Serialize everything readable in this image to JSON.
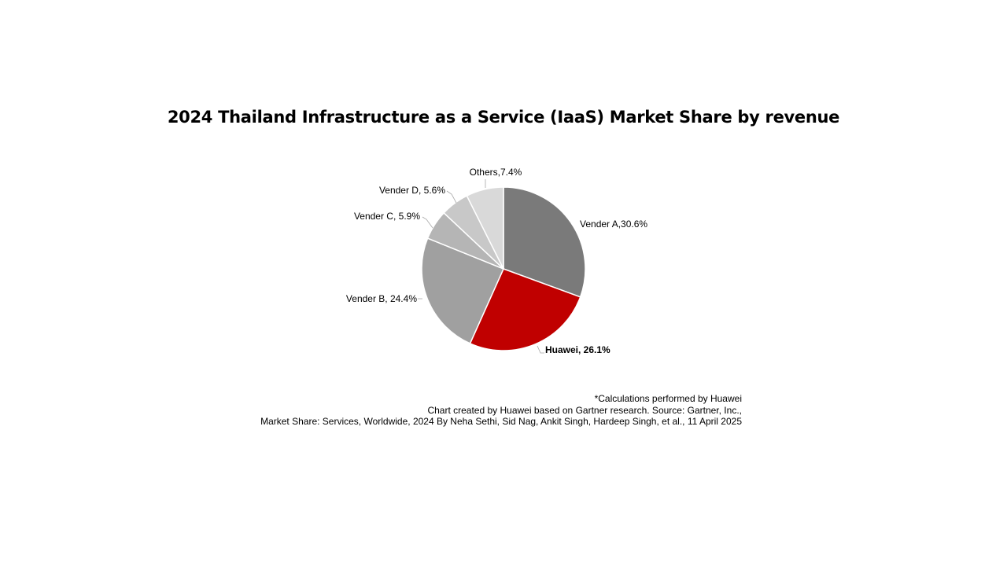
{
  "chart_data": {
    "type": "pie",
    "title": "2024 Thailand Infrastructure as a Service (IaaS) Market Share by revenue",
    "slices": [
      {
        "name": "Vender A",
        "value": 30.6,
        "label": "Vender A,30.6%",
        "color": "#7a7a7a"
      },
      {
        "name": "Huawei",
        "value": 26.1,
        "label": "Huawei, 26.1%",
        "color": "#c00000",
        "highlight": true
      },
      {
        "name": "Vender B",
        "value": 24.4,
        "label": "Vender B, 24.4%",
        "color": "#a0a0a0"
      },
      {
        "name": "Vender C",
        "value": 5.9,
        "label": "Vender C, 5.9%",
        "color": "#b5b5b5"
      },
      {
        "name": "Vender D",
        "value": 5.6,
        "label": "Vender D, 5.6%",
        "color": "#c8c8c8"
      },
      {
        "name": "Others",
        "value": 7.4,
        "label": "Others,7.4%",
        "color": "#d9d9d9"
      }
    ]
  },
  "footnote": {
    "line1": "*Calculations performed by Huawei",
    "line2": "Chart created by Huawei based on Gartner research. Source: Gartner, Inc.,",
    "line3": "Market Share: Services,  Worldwide, 2024 By  Neha Sethi, Sid Nag, Ankit Singh, Hardeep Singh, et al., 11 April 2025"
  }
}
